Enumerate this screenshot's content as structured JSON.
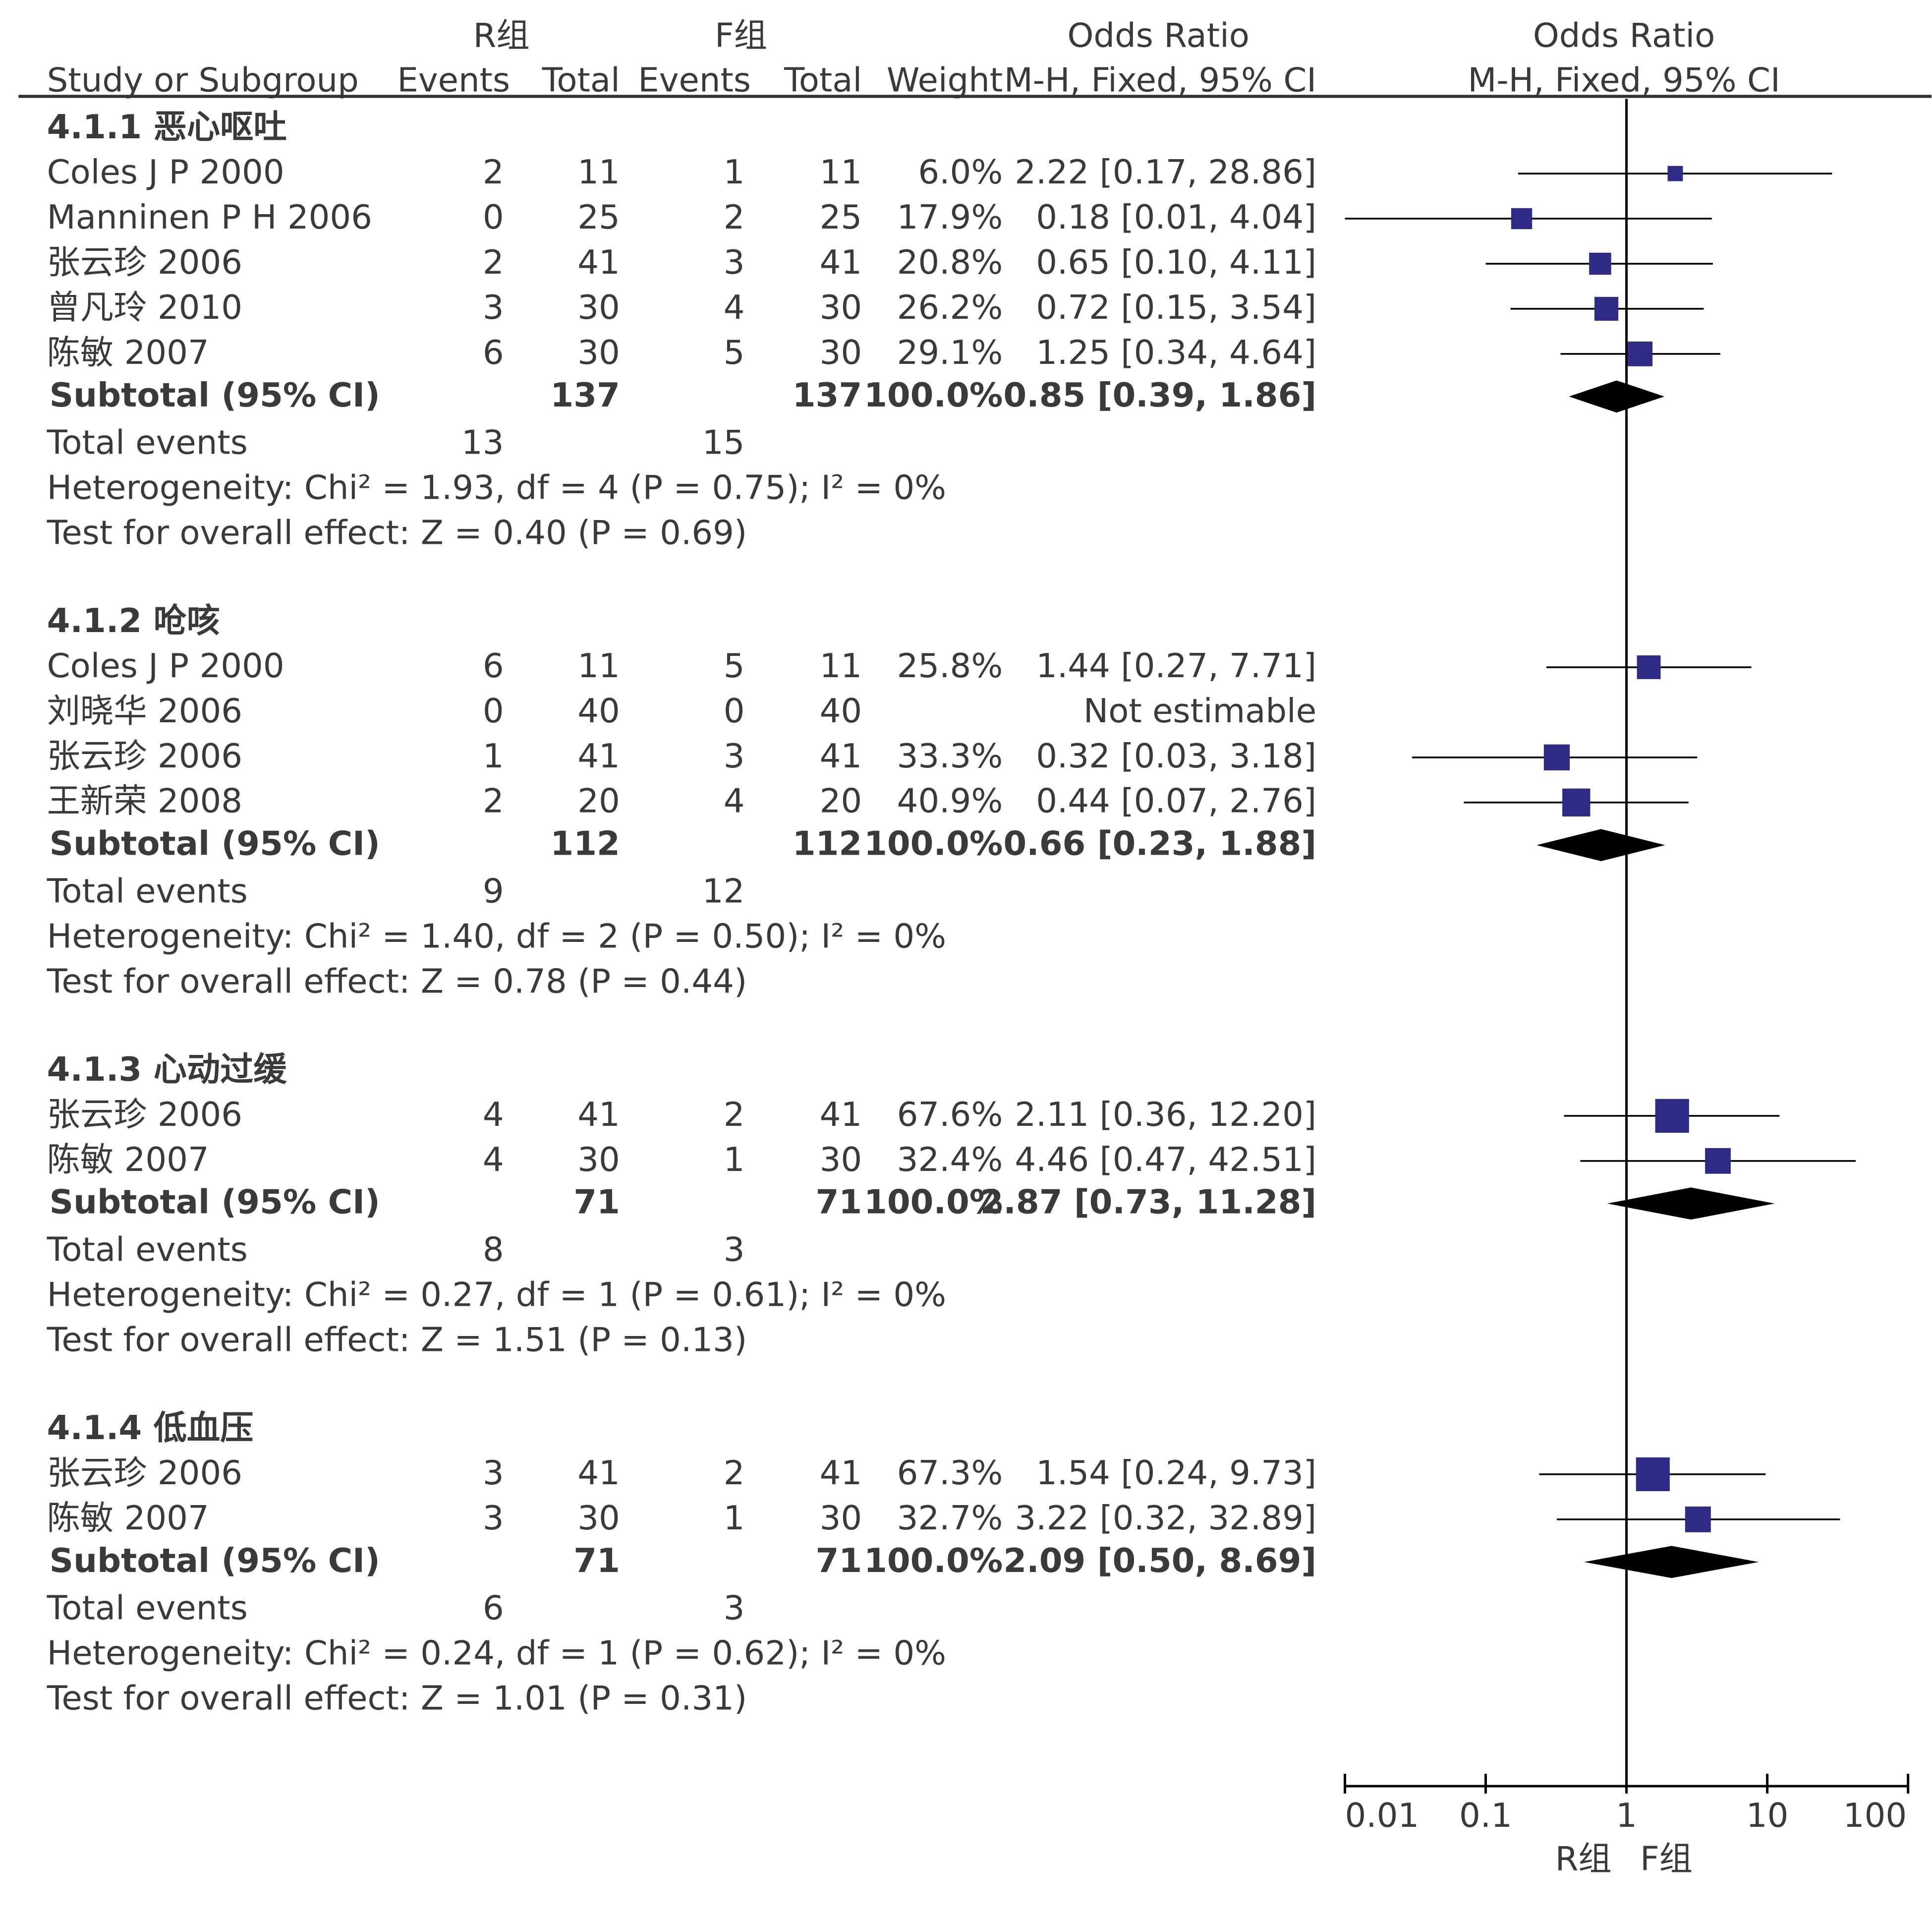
{
  "chart_data": {
    "type": "forest",
    "columns": {
      "group1": "R组",
      "group2": "F组",
      "study": "Study or Subgroup",
      "events": "Events",
      "total": "Total",
      "weight": "Weight",
      "or_title": "Odds Ratio",
      "or_method": "M-H, Fixed, 95% CI"
    },
    "subgroups": [
      {
        "title": "4.1.1 恶心呕吐",
        "studies": [
          {
            "name": "Coles J P 2000",
            "e1": "2",
            "t1": "11",
            "e2": "1",
            "t2": "11",
            "weight": "6.0%",
            "ci_text": "2.22 [0.17, 28.86]",
            "or": 2.22,
            "lo": 0.17,
            "hi": 28.86
          },
          {
            "name": "Manninen P H 2006",
            "e1": "0",
            "t1": "25",
            "e2": "2",
            "t2": "25",
            "weight": "17.9%",
            "ci_text": "0.18 [0.01, 4.04]",
            "or": 0.18,
            "lo": 0.01,
            "hi": 4.04
          },
          {
            "name": "张云珍 2006",
            "e1": "2",
            "t1": "41",
            "e2": "3",
            "t2": "41",
            "weight": "20.8%",
            "ci_text": "0.65 [0.10, 4.11]",
            "or": 0.65,
            "lo": 0.1,
            "hi": 4.11
          },
          {
            "name": "曾凡玲 2010",
            "e1": "3",
            "t1": "30",
            "e2": "4",
            "t2": "30",
            "weight": "26.2%",
            "ci_text": "0.72 [0.15, 3.54]",
            "or": 0.72,
            "lo": 0.15,
            "hi": 3.54
          },
          {
            "name": "陈敏 2007",
            "e1": "6",
            "t1": "30",
            "e2": "5",
            "t2": "30",
            "weight": "29.1%",
            "ci_text": "1.25 [0.34, 4.64]",
            "or": 1.25,
            "lo": 0.34,
            "hi": 4.64
          }
        ],
        "subtotal": {
          "label": "Subtotal (95% CI)",
          "t1": "137",
          "t2": "137",
          "weight": "100.0%",
          "ci_text": "0.85 [0.39, 1.86]",
          "or": 0.85,
          "lo": 0.39,
          "hi": 1.86
        },
        "total_events": {
          "label": "Total events",
          "e1": "13",
          "e2": "15"
        },
        "heterogeneity": "Heterogeneity: Chi² = 1.93, df = 4 (P = 0.75); I² = 0%",
        "overall": "Test for overall effect: Z = 0.40 (P = 0.69)"
      },
      {
        "title": "4.1.2 呛咳",
        "studies": [
          {
            "name": "Coles J P 2000",
            "e1": "6",
            "t1": "11",
            "e2": "5",
            "t2": "11",
            "weight": "25.8%",
            "ci_text": "1.44 [0.27, 7.71]",
            "or": 1.44,
            "lo": 0.27,
            "hi": 7.71
          },
          {
            "name": "刘晓华 2006",
            "e1": "0",
            "t1": "40",
            "e2": "0",
            "t2": "40",
            "weight": "",
            "ci_text": "Not estimable",
            "or": null,
            "lo": null,
            "hi": null
          },
          {
            "name": "张云珍 2006",
            "e1": "1",
            "t1": "41",
            "e2": "3",
            "t2": "41",
            "weight": "33.3%",
            "ci_text": "0.32 [0.03, 3.18]",
            "or": 0.32,
            "lo": 0.03,
            "hi": 3.18
          },
          {
            "name": "王新荣 2008",
            "e1": "2",
            "t1": "20",
            "e2": "4",
            "t2": "20",
            "weight": "40.9%",
            "ci_text": "0.44 [0.07, 2.76]",
            "or": 0.44,
            "lo": 0.07,
            "hi": 2.76
          }
        ],
        "subtotal": {
          "label": "Subtotal (95% CI)",
          "t1": "112",
          "t2": "112",
          "weight": "100.0%",
          "ci_text": "0.66 [0.23, 1.88]",
          "or": 0.66,
          "lo": 0.23,
          "hi": 1.88
        },
        "total_events": {
          "label": "Total events",
          "e1": "9",
          "e2": "12"
        },
        "heterogeneity": "Heterogeneity: Chi² = 1.40, df = 2 (P = 0.50); I² = 0%",
        "overall": "Test for overall effect: Z = 0.78 (P = 0.44)"
      },
      {
        "title": "4.1.3 心动过缓",
        "studies": [
          {
            "name": "张云珍 2006",
            "e1": "4",
            "t1": "41",
            "e2": "2",
            "t2": "41",
            "weight": "67.6%",
            "ci_text": "2.11 [0.36, 12.20]",
            "or": 2.11,
            "lo": 0.36,
            "hi": 12.2
          },
          {
            "name": "陈敏 2007",
            "e1": "4",
            "t1": "30",
            "e2": "1",
            "t2": "30",
            "weight": "32.4%",
            "ci_text": "4.46 [0.47, 42.51]",
            "or": 4.46,
            "lo": 0.47,
            "hi": 42.51
          }
        ],
        "subtotal": {
          "label": "Subtotal (95% CI)",
          "t1": "71",
          "t2": "71",
          "weight": "100.0%",
          "ci_text": "2.87 [0.73, 11.28]",
          "or": 2.87,
          "lo": 0.73,
          "hi": 11.28
        },
        "total_events": {
          "label": "Total events",
          "e1": "8",
          "e2": "3"
        },
        "heterogeneity": "Heterogeneity: Chi² = 0.27, df = 1 (P = 0.61); I² = 0%",
        "overall": "Test for overall effect: Z = 1.51 (P = 0.13)"
      },
      {
        "title": "4.1.4 低血压",
        "studies": [
          {
            "name": "张云珍 2006",
            "e1": "3",
            "t1": "41",
            "e2": "2",
            "t2": "41",
            "weight": "67.3%",
            "ci_text": "1.54 [0.24, 9.73]",
            "or": 1.54,
            "lo": 0.24,
            "hi": 9.73
          },
          {
            "name": "陈敏 2007",
            "e1": "3",
            "t1": "30",
            "e2": "1",
            "t2": "30",
            "weight": "32.7%",
            "ci_text": "3.22 [0.32, 32.89]",
            "or": 3.22,
            "lo": 0.32,
            "hi": 32.89
          }
        ],
        "subtotal": {
          "label": "Subtotal (95% CI)",
          "t1": "71",
          "t2": "71",
          "weight": "100.0%",
          "ci_text": "2.09 [0.50, 8.69]",
          "or": 2.09,
          "lo": 0.5,
          "hi": 8.69
        },
        "total_events": {
          "label": "Total events",
          "e1": "6",
          "e2": "3"
        },
        "heterogeneity": "Heterogeneity: Chi² = 0.24, df = 1 (P = 0.62); I² = 0%",
        "overall": "Test for overall effect: Z = 1.01 (P = 0.31)"
      }
    ],
    "axis": {
      "scale": "log",
      "xlim": [
        0.01,
        100
      ],
      "ticks": [
        0.01,
        0.1,
        1,
        10,
        100
      ],
      "tick_labels": [
        "0.01",
        "0.1",
        "1",
        "10",
        "100"
      ],
      "left_label": "R组",
      "right_label": "F组"
    },
    "colors": {
      "marker": "#2e2a86",
      "diamond": "#000000",
      "text": "#3a3a3a",
      "line": "#000000"
    }
  }
}
